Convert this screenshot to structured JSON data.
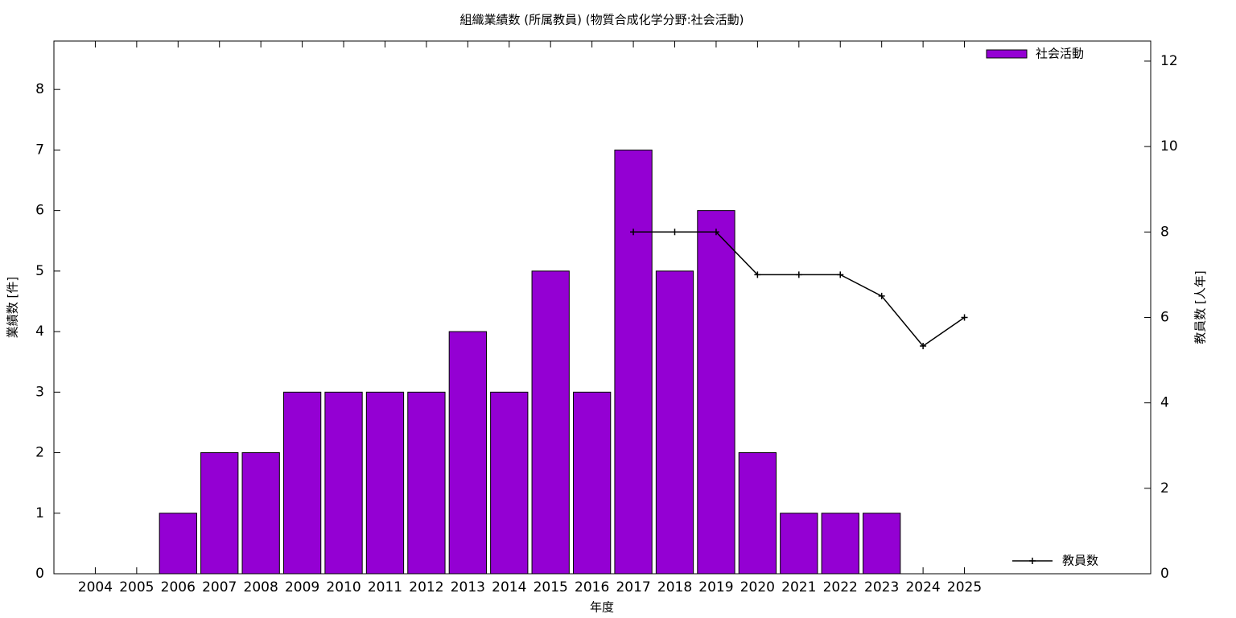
{
  "chart_data": {
    "type": "bar",
    "title": "組織業績数 (所属教員) (物質合成化学分野:社会活動)",
    "x_label": "年度",
    "y_label": "業績数 [件]",
    "y2_label": "教員数 [人年]",
    "categories": [
      "2004",
      "2005",
      "2006",
      "2007",
      "2008",
      "2009",
      "2010",
      "2011",
      "2012",
      "2013",
      "2014",
      "2015",
      "2016",
      "2017",
      "2018",
      "2019",
      "2020",
      "2021",
      "2022",
      "2023",
      "2024",
      "2025"
    ],
    "series": [
      {
        "name": "社会活動",
        "type": "bar",
        "color": "#9400d3",
        "values": [
          0,
          0,
          1,
          2,
          2,
          3,
          3,
          3,
          3,
          4,
          3,
          5,
          3,
          7,
          5,
          6,
          2,
          1,
          1,
          1,
          0,
          0
        ]
      },
      {
        "name": "教員数",
        "type": "line",
        "axis": "y2",
        "color": "#000000",
        "values": [
          null,
          null,
          null,
          null,
          null,
          null,
          null,
          null,
          null,
          null,
          null,
          null,
          null,
          8,
          8,
          8,
          7,
          7,
          7,
          6.5,
          5.33,
          6
        ]
      }
    ],
    "ylim": [
      0,
      8.8
    ],
    "yticks": [
      0,
      1,
      2,
      3,
      4,
      5,
      6,
      7,
      8
    ],
    "y2lim": [
      0,
      12.47
    ],
    "y2ticks": [
      0,
      2,
      4,
      6,
      8,
      10,
      12
    ]
  }
}
